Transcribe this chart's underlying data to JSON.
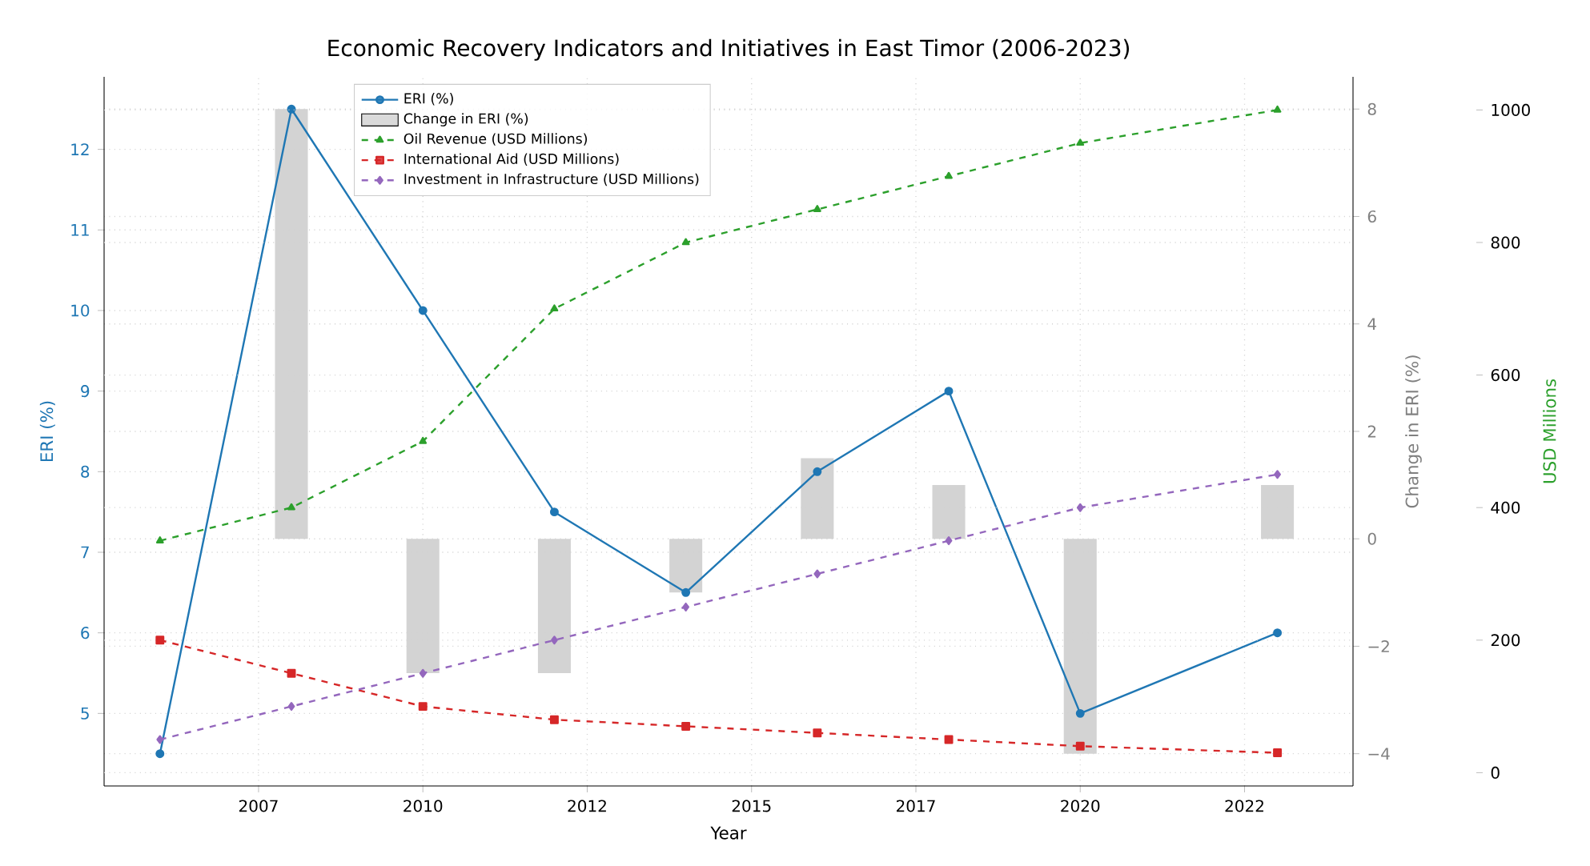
{
  "chart_data": {
    "type": "line",
    "title": "Economic Recovery Indicators and Initiatives in East Timor (2006-2023)",
    "xlabel": "Year",
    "ylabel": "ERI (%)",
    "y2label": "Change in ERI (%)",
    "y3label": "USD Millions",
    "x": [
      2006,
      2008,
      2010,
      2012,
      2014,
      2016,
      2018,
      2020,
      2023
    ],
    "xlim": [
      2005.15,
      2024.15
    ],
    "xticks": [
      {
        "value": 2007.5,
        "label": "2007"
      },
      2010,
      {
        "value": 2012.5,
        "label": "2012"
      },
      2015,
      {
        "value": 2017.5,
        "label": "2017"
      },
      2020,
      {
        "value": 2022.5,
        "label": "2022"
      }
    ],
    "ylim": [
      4.1,
      12.9
    ],
    "yticks": [
      5,
      6,
      7,
      8,
      9,
      10,
      11,
      12
    ],
    "y2lim": [
      -4.6,
      8.6
    ],
    "y2ticks": [
      {
        "value": -4,
        "label": "−4"
      },
      {
        "value": -2,
        "label": "−2"
      },
      0,
      2,
      4,
      6,
      8
    ],
    "y3lim": [
      -20,
      1050
    ],
    "y3ticks": [
      0,
      200,
      400,
      600,
      800,
      1000
    ],
    "grid": true,
    "legend": "top",
    "series": [
      {
        "name": "ERI (%)",
        "axis": "y",
        "color": "#1f77b4",
        "marker": "circle",
        "line_style": "solid",
        "values": [
          4.5,
          12.5,
          10,
          7.5,
          6.5,
          8,
          9,
          5,
          6
        ]
      },
      {
        "name": "Change in ERI (%)",
        "type": "bar",
        "axis": "y2",
        "color": "#d3d3d3",
        "values": [
          null,
          8,
          -2.5,
          -2.5,
          -1,
          1.5,
          1,
          -4,
          1
        ]
      },
      {
        "name": "Oil Revenue (USD Millions)",
        "axis": "y3",
        "color": "#2ca02c",
        "marker": "triangle",
        "line_style": "dashed",
        "values": [
          350,
          400,
          500,
          700,
          800,
          850,
          900,
          950,
          1000
        ]
      },
      {
        "name": "International Aid (USD Millions)",
        "axis": "y3",
        "color": "#d62728",
        "marker": "square",
        "line_style": "dashed",
        "values": [
          200,
          150,
          100,
          80,
          70,
          60,
          50,
          40,
          30
        ]
      },
      {
        "name": "Investment in Infrastructure (USD Millions)",
        "axis": "y3",
        "color": "#9467bd",
        "marker": "diamond",
        "line_style": "dashed",
        "values": [
          50,
          100,
          150,
          200,
          250,
          300,
          350,
          400,
          450
        ]
      }
    ]
  }
}
